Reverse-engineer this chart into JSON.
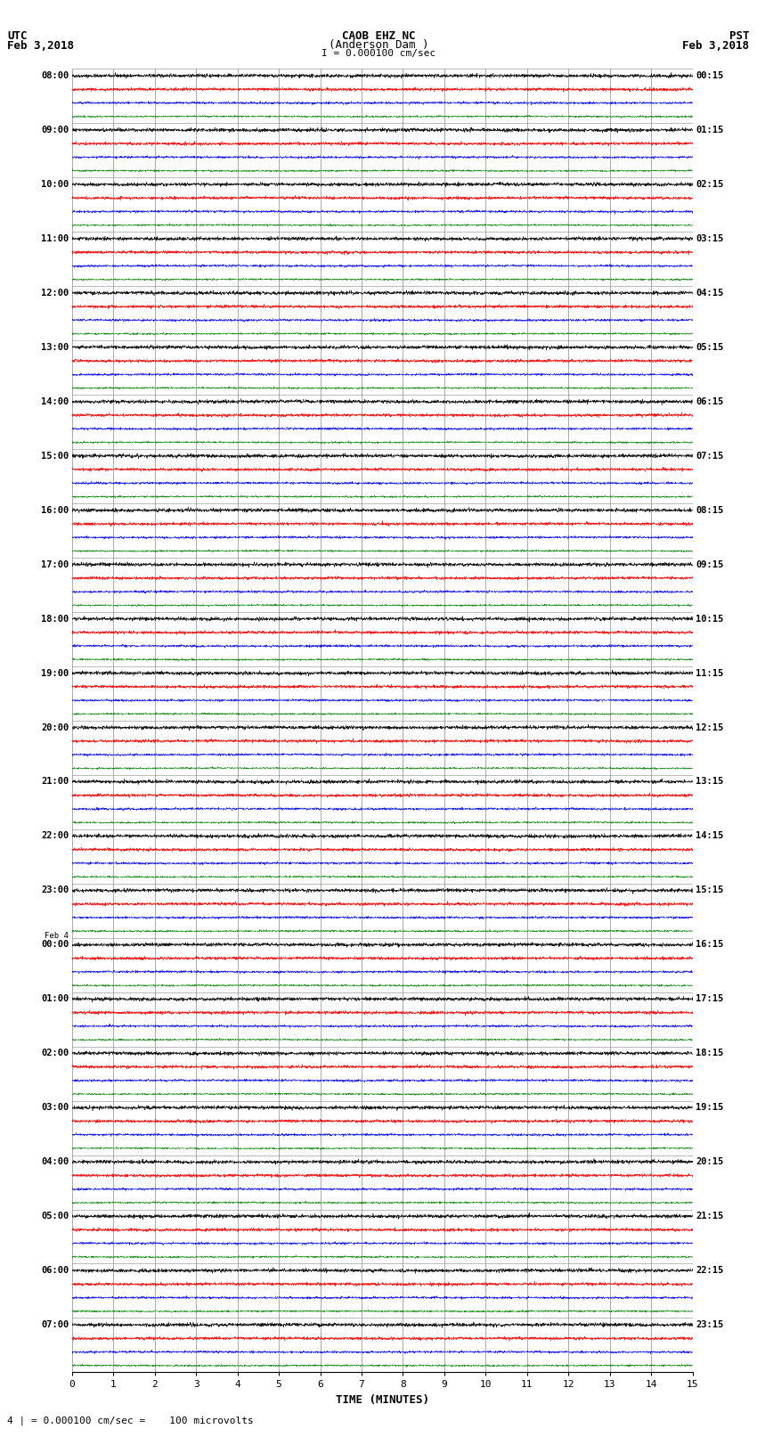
{
  "title_line1": "CAOB EHZ NC",
  "title_line2": "(Anderson Dam )",
  "scale_text": "I = 0.000100 cm/sec",
  "left_header_line1": "UTC",
  "left_header_line2": "Feb 3,2018",
  "right_header_line1": "PST",
  "right_header_line2": "Feb 3,2018",
  "footer_text": "4 | = 0.000100 cm/sec =    100 microvolts",
  "xlabel": "TIME (MINUTES)",
  "xticks": [
    0,
    1,
    2,
    3,
    4,
    5,
    6,
    7,
    8,
    9,
    10,
    11,
    12,
    13,
    14,
    15
  ],
  "left_times": [
    "08:00",
    "",
    "",
    "",
    "09:00",
    "",
    "",
    "",
    "10:00",
    "",
    "",
    "",
    "11:00",
    "",
    "",
    "",
    "12:00",
    "",
    "",
    "",
    "13:00",
    "",
    "",
    "",
    "14:00",
    "",
    "",
    "",
    "15:00",
    "",
    "",
    "",
    "16:00",
    "",
    "",
    "",
    "17:00",
    "",
    "",
    "",
    "18:00",
    "",
    "",
    "",
    "19:00",
    "",
    "",
    "",
    "20:00",
    "",
    "",
    "",
    "21:00",
    "",
    "",
    "",
    "22:00",
    "",
    "",
    "",
    "23:00",
    "",
    "",
    "",
    "Feb 4|00:00",
    "",
    "",
    "",
    "01:00",
    "",
    "",
    "",
    "02:00",
    "",
    "",
    "",
    "03:00",
    "",
    "",
    "",
    "04:00",
    "",
    "",
    "",
    "05:00",
    "",
    "",
    "",
    "06:00",
    "",
    "",
    "",
    "07:00",
    "",
    "",
    ""
  ],
  "right_times": [
    "00:15",
    "",
    "",
    "",
    "01:15",
    "",
    "",
    "",
    "02:15",
    "",
    "",
    "",
    "03:15",
    "",
    "",
    "",
    "04:15",
    "",
    "",
    "",
    "05:15",
    "",
    "",
    "",
    "06:15",
    "",
    "",
    "",
    "07:15",
    "",
    "",
    "",
    "08:15",
    "",
    "",
    "",
    "09:15",
    "",
    "",
    "",
    "10:15",
    "",
    "",
    "",
    "11:15",
    "",
    "",
    "",
    "12:15",
    "",
    "",
    "",
    "13:15",
    "",
    "",
    "",
    "14:15",
    "",
    "",
    "",
    "15:15",
    "",
    "",
    "",
    "16:15",
    "",
    "",
    "",
    "17:15",
    "",
    "",
    "",
    "18:15",
    "",
    "",
    "",
    "19:15",
    "",
    "",
    "",
    "20:15",
    "",
    "",
    "",
    "21:15",
    "",
    "",
    "",
    "22:15",
    "",
    "",
    "",
    "23:15",
    "",
    "",
    ""
  ],
  "num_groups": 24,
  "traces_per_group": 4,
  "row_colors": [
    "black",
    "red",
    "blue",
    "green"
  ],
  "bg_color": "white",
  "grid_color": "#888888",
  "minute_ticks": 15,
  "noise_scale": [
    0.06,
    0.05,
    0.04,
    0.03
  ],
  "trace_amplitude": 0.28,
  "figsize": [
    8.5,
    16.13
  ],
  "dpi": 100
}
